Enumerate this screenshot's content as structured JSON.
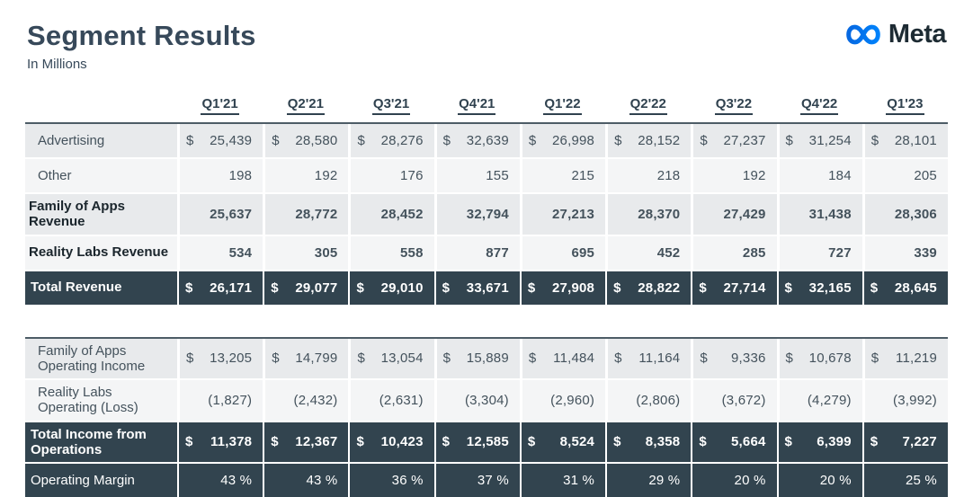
{
  "page": {
    "title": "Segment Results",
    "subtitle": "In Millions"
  },
  "logo": {
    "wordmark": "Meta",
    "gradient_start": "#0668E1",
    "gradient_end": "#0082FB"
  },
  "symbols": {
    "dollar": "$"
  },
  "columns": [
    "Q1'21",
    "Q2'21",
    "Q3'21",
    "Q4'21",
    "Q1'22",
    "Q2'22",
    "Q3'22",
    "Q4'22",
    "Q1'23"
  ],
  "colors": {
    "navy_row": "#32444f",
    "gray_row": "#e8eaec",
    "light_row": "#f4f5f6",
    "title_text": "#37495a",
    "body_text": "#44525c",
    "table_top_border": "#4d5c66"
  },
  "revenue_table": {
    "rows": [
      {
        "id": "advertising",
        "label": "Advertising",
        "style": "plain",
        "dollar": true,
        "values": [
          "25,439",
          "28,580",
          "28,276",
          "32,639",
          "26,998",
          "28,152",
          "27,237",
          "31,254",
          "28,101"
        ]
      },
      {
        "id": "other",
        "label": "Other",
        "style": "plain",
        "dollar": false,
        "values": [
          "198",
          "192",
          "176",
          "155",
          "215",
          "218",
          "192",
          "184",
          "205"
        ]
      },
      {
        "id": "family-of-apps-revenue",
        "label": "Family of Apps\nRevenue",
        "style": "bold",
        "dollar": false,
        "values": [
          "25,637",
          "28,772",
          "28,452",
          "32,794",
          "27,213",
          "28,370",
          "27,429",
          "31,438",
          "28,306"
        ]
      },
      {
        "id": "reality-labs-revenue",
        "label": "Reality Labs Revenue",
        "style": "bold",
        "dollar": false,
        "values": [
          "534",
          "305",
          "558",
          "877",
          "695",
          "452",
          "285",
          "727",
          "339"
        ]
      },
      {
        "id": "total-revenue",
        "label": "Total Revenue",
        "style": "total",
        "dollar": true,
        "values": [
          "26,171",
          "29,077",
          "29,010",
          "33,671",
          "27,908",
          "28,822",
          "27,714",
          "32,165",
          "28,645"
        ]
      }
    ]
  },
  "income_table": {
    "rows": [
      {
        "id": "family-of-apps-operating-income",
        "label": "Family of Apps\nOperating Income",
        "style": "plain",
        "dollar": true,
        "values": [
          "13,205",
          "14,799",
          "13,054",
          "15,889",
          "11,484",
          "11,164",
          "9,336",
          "10,678",
          "11,219"
        ]
      },
      {
        "id": "reality-labs-operating-loss",
        "label": "Reality Labs\nOperating (Loss)",
        "style": "plain",
        "dollar": false,
        "values": [
          "(1,827)",
          "(2,432)",
          "(2,631)",
          "(3,304)",
          "(2,960)",
          "(2,806)",
          "(3,672)",
          "(4,279)",
          "(3,992)"
        ]
      },
      {
        "id": "total-income-from-operations",
        "label": "Total Income from\nOperations",
        "style": "total",
        "dollar": true,
        "values": [
          "11,378",
          "12,367",
          "10,423",
          "12,585",
          "8,524",
          "8,358",
          "5,664",
          "6,399",
          "7,227"
        ]
      },
      {
        "id": "operating-margin",
        "label": "Operating Margin",
        "style": "total-plain",
        "dollar": false,
        "values": [
          "43 %",
          "43 %",
          "36 %",
          "37 %",
          "31 %",
          "29 %",
          "20 %",
          "20 %",
          "25 %"
        ]
      }
    ]
  },
  "chart_data": [
    {
      "type": "table",
      "title": "Segment Results — Revenue (In Millions USD)",
      "categories": [
        "Q1'21",
        "Q2'21",
        "Q3'21",
        "Q4'21",
        "Q1'22",
        "Q2'22",
        "Q3'22",
        "Q4'22",
        "Q1'23"
      ],
      "series": [
        {
          "name": "Advertising",
          "values": [
            25439,
            28580,
            28276,
            32639,
            26998,
            28152,
            27237,
            31254,
            28101
          ]
        },
        {
          "name": "Other",
          "values": [
            198,
            192,
            176,
            155,
            215,
            218,
            192,
            184,
            205
          ]
        },
        {
          "name": "Family of Apps Revenue",
          "values": [
            25637,
            28772,
            28452,
            32794,
            27213,
            28370,
            27429,
            31438,
            28306
          ]
        },
        {
          "name": "Reality Labs Revenue",
          "values": [
            534,
            305,
            558,
            877,
            695,
            452,
            285,
            727,
            339
          ]
        },
        {
          "name": "Total Revenue",
          "values": [
            26171,
            29077,
            29010,
            33671,
            27908,
            28822,
            27714,
            32165,
            28645
          ]
        }
      ]
    },
    {
      "type": "table",
      "title": "Segment Results — Operating Income (In Millions USD)",
      "categories": [
        "Q1'21",
        "Q2'21",
        "Q3'21",
        "Q4'21",
        "Q1'22",
        "Q2'22",
        "Q3'22",
        "Q4'22",
        "Q1'23"
      ],
      "series": [
        {
          "name": "Family of Apps Operating Income",
          "values": [
            13205,
            14799,
            13054,
            15889,
            11484,
            11164,
            9336,
            10678,
            11219
          ]
        },
        {
          "name": "Reality Labs Operating (Loss)",
          "values": [
            -1827,
            -2432,
            -2631,
            -3304,
            -2960,
            -2806,
            -3672,
            -4279,
            -3992
          ]
        },
        {
          "name": "Total Income from Operations",
          "values": [
            11378,
            12367,
            10423,
            12585,
            8524,
            8358,
            5664,
            6399,
            7227
          ]
        },
        {
          "name": "Operating Margin (%)",
          "values": [
            43,
            43,
            36,
            37,
            31,
            29,
            20,
            20,
            25
          ]
        }
      ]
    }
  ]
}
